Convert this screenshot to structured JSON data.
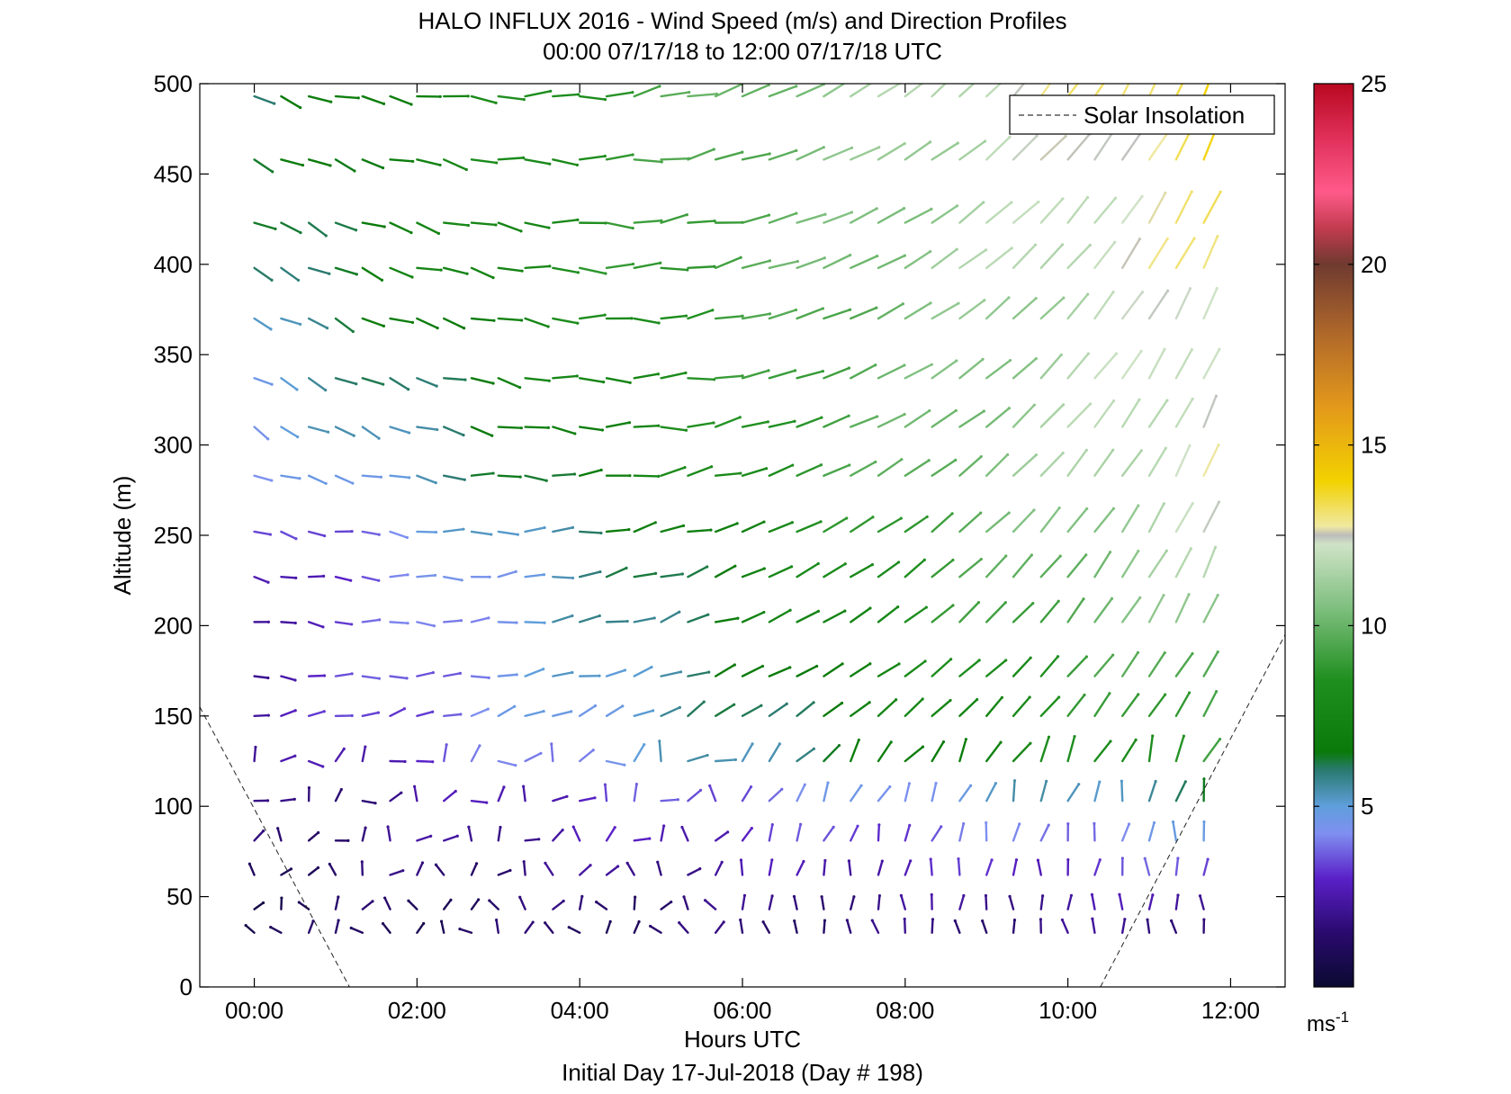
{
  "chart_data": {
    "type": "wind-barb-profile",
    "title": "HALO INFLUX 2016 - Wind Speed (m/s) and Direction Profiles",
    "subtitle": "00:00 07/17/18 to 12:00 07/17/18  UTC",
    "xlabel": "Hours UTC",
    "ylabel": "Altitude (m)",
    "footer": "Initial Day 17-Jul-2018 (Day # 198)",
    "xlim": [
      -0.67,
      12.67
    ],
    "ylim": [
      0,
      500
    ],
    "x_ticks": [
      0,
      2,
      4,
      6,
      8,
      10,
      12
    ],
    "x_tick_labels": [
      "00:00",
      "02:00",
      "04:00",
      "06:00",
      "08:00",
      "10:00",
      "12:00"
    ],
    "y_ticks": [
      0,
      50,
      100,
      150,
      200,
      250,
      300,
      350,
      400,
      450,
      500
    ],
    "y_tick_labels": [
      "0",
      "50",
      "100",
      "150",
      "200",
      "250",
      "300",
      "350",
      "400",
      "450",
      "500"
    ],
    "legend": {
      "entries": [
        "Solar Insolation"
      ],
      "placement": "top-right"
    },
    "colorbar": {
      "range": [
        0,
        25
      ],
      "ticks": [
        5,
        10,
        15,
        20,
        25
      ],
      "tick_labels": [
        "5",
        "10",
        "15",
        "20",
        "25"
      ],
      "unit_label": "ms",
      "unit_exponent": "-1"
    },
    "solar_insolation": [
      {
        "x": [
          -0.67,
          1.17
        ],
        "y": [
          155,
          0
        ]
      },
      {
        "x": [
          10.4,
          12.67
        ],
        "y": [
          0,
          195
        ]
      }
    ],
    "wind_profiles": {
      "times": [
        0.0,
        0.33,
        0.67,
        1.0,
        1.33,
        1.67,
        2.0,
        2.33,
        2.67,
        3.0,
        3.33,
        3.67,
        4.0,
        4.33,
        4.67,
        5.0,
        5.33,
        5.67,
        6.0,
        6.33,
        6.67,
        7.0,
        7.33,
        7.67,
        8.0,
        8.33,
        8.67,
        9.0,
        9.33,
        9.67,
        10.0,
        10.33,
        10.67,
        11.0,
        11.33,
        11.67
      ],
      "altitudes": [
        30,
        43,
        62,
        81,
        103,
        125,
        150,
        172,
        202,
        227,
        252,
        283,
        310,
        337,
        370,
        398,
        423,
        458,
        493
      ],
      "levels": [
        {
          "alt": 493,
          "speed_start": 6.0,
          "speed_end": 14.0,
          "dir_start": 290,
          "dir_end": 200
        },
        {
          "alt": 458,
          "speed_start": 6.0,
          "speed_end": 13.5,
          "dir_start": 295,
          "dir_end": 205
        },
        {
          "alt": 423,
          "speed_start": 6.0,
          "speed_end": 13.0,
          "dir_start": 298,
          "dir_end": 205
        },
        {
          "alt": 398,
          "speed_start": 6.0,
          "speed_end": 13.0,
          "dir_start": 298,
          "dir_end": 205
        },
        {
          "alt": 370,
          "speed_start": 5.5,
          "speed_end": 12.5,
          "dir_start": 300,
          "dir_end": 205
        },
        {
          "alt": 337,
          "speed_start": 5.0,
          "speed_end": 12.5,
          "dir_start": 300,
          "dir_end": 205
        },
        {
          "alt": 310,
          "speed_start": 4.5,
          "speed_end": 12.5,
          "dir_start": 300,
          "dir_end": 205
        },
        {
          "alt": 283,
          "speed_start": 4.0,
          "speed_end": 12.5,
          "dir_start": 290,
          "dir_end": 205
        },
        {
          "alt": 252,
          "speed_start": 3.0,
          "speed_end": 12.0,
          "dir_start": 285,
          "dir_end": 205
        },
        {
          "alt": 227,
          "speed_start": 2.5,
          "speed_end": 11.5,
          "dir_start": 280,
          "dir_end": 205
        },
        {
          "alt": 202,
          "speed_start": 2.5,
          "speed_end": 11.0,
          "dir_start": 280,
          "dir_end": 205
        },
        {
          "alt": 172,
          "speed_start": 2.5,
          "speed_end": 10.0,
          "dir_start": 275,
          "dir_end": 210
        },
        {
          "alt": 150,
          "speed_start": 2.5,
          "speed_end": 9.5,
          "dir_start": 260,
          "dir_end": 210
        },
        {
          "alt": 125,
          "speed_start": 2.0,
          "speed_end": 9.0,
          "dir_start": 240,
          "dir_end": 200
        },
        {
          "alt": 103,
          "speed_start": 1.5,
          "speed_end": 6.0,
          "dir_start": 230,
          "dir_end": 190
        },
        {
          "alt": 81,
          "speed_start": 1.5,
          "speed_end": 4.5,
          "dir_start": 220,
          "dir_end": 185
        },
        {
          "alt": 62,
          "speed_start": 1.2,
          "speed_end": 3.5,
          "dir_start": 200,
          "dir_end": 180
        },
        {
          "alt": 43,
          "speed_start": 1.0,
          "speed_end": 2.5,
          "dir_start": 180,
          "dir_end": 180
        },
        {
          "alt": 30,
          "speed_start": 1.0,
          "speed_end": 2.0,
          "dir_start": 160,
          "dir_end": 175
        }
      ]
    }
  }
}
